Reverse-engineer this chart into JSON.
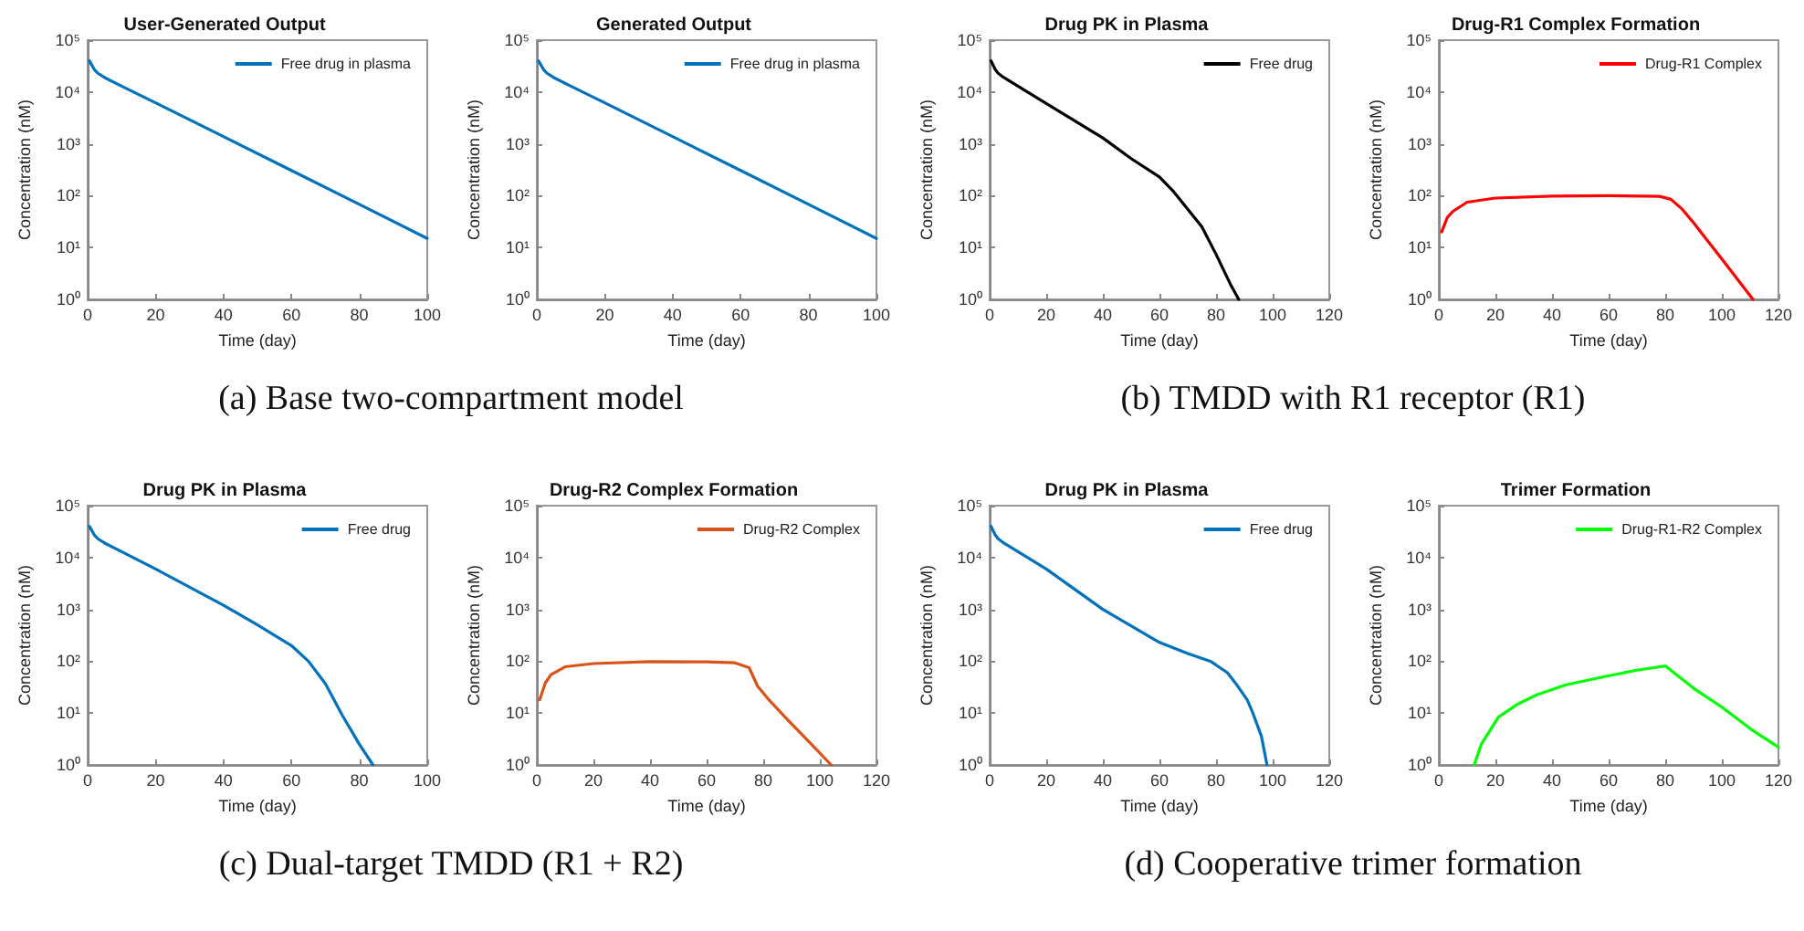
{
  "chart_data": [
    {
      "type": "line",
      "title": "User-Generated Output",
      "xlabel": "Time (day)",
      "ylabel": "Concentration (nM)",
      "xlim": [
        0,
        100
      ],
      "xticks": [
        0,
        20,
        40,
        60,
        80,
        100
      ],
      "ylim": [
        1,
        100000
      ],
      "yticks": [
        {
          "value": 1,
          "label": "10⁰"
        },
        {
          "value": 10,
          "label": "10¹"
        },
        {
          "value": 100,
          "label": "10²"
        },
        {
          "value": 1000,
          "label": "10³"
        },
        {
          "value": 10000,
          "label": "10⁴"
        },
        {
          "value": 100000,
          "label": "10⁵"
        }
      ],
      "log": "y",
      "legend": "top right",
      "annotations": [
        "(a) Base two-compartment model"
      ],
      "series": [
        {
          "name": "Free drug in plasma",
          "color": "#0072bd",
          "x": [
            0.5,
            1,
            2,
            3,
            5,
            10,
            20,
            40,
            60,
            80,
            100
          ],
          "values": [
            40000,
            35000,
            27000,
            23000,
            19000,
            13000,
            6200,
            1380,
            307,
            68,
            15
          ]
        }
      ]
    },
    {
      "type": "line",
      "title": "Generated Output",
      "xlabel": "Time (day)",
      "ylabel": "Concentration (nM)",
      "xlim": [
        0,
        100
      ],
      "xticks": [
        0,
        20,
        40,
        60,
        80,
        100
      ],
      "ylim": [
        1,
        100000
      ],
      "yticks": [
        {
          "value": 1,
          "label": "10⁰"
        },
        {
          "value": 10,
          "label": "10¹"
        },
        {
          "value": 100,
          "label": "10²"
        },
        {
          "value": 1000,
          "label": "10³"
        },
        {
          "value": 10000,
          "label": "10⁴"
        },
        {
          "value": 100000,
          "label": "10⁵"
        }
      ],
      "log": "y",
      "legend": "top right",
      "series": [
        {
          "name": "Free drug in plasma",
          "color": "#0072bd",
          "x": [
            0.5,
            1,
            2,
            3,
            5,
            10,
            20,
            40,
            60,
            80,
            100
          ],
          "values": [
            40000,
            35000,
            27000,
            23000,
            19000,
            13000,
            6200,
            1380,
            307,
            68,
            15
          ]
        }
      ]
    },
    {
      "type": "line",
      "title": "Drug PK in Plasma",
      "xlabel": "Time (day)",
      "ylabel": "Concentration (nM)",
      "xlim": [
        0,
        120
      ],
      "xticks": [
        0,
        20,
        40,
        60,
        80,
        100,
        120
      ],
      "ylim": [
        1,
        100000
      ],
      "yticks": [
        {
          "value": 1,
          "label": "10⁰"
        },
        {
          "value": 10,
          "label": "10¹"
        },
        {
          "value": 100,
          "label": "10²"
        },
        {
          "value": 1000,
          "label": "10³"
        },
        {
          "value": 10000,
          "label": "10⁴"
        },
        {
          "value": 100000,
          "label": "10⁵"
        }
      ],
      "log": "y",
      "legend": "top right",
      "annotations": [
        "(b) TMDD with R1 receptor (R1)"
      ],
      "series": [
        {
          "name": "Free drug",
          "color": "#000000",
          "x": [
            0.5,
            1,
            2,
            3,
            5,
            10,
            20,
            40,
            50,
            60,
            65,
            70,
            75,
            80,
            85,
            88
          ],
          "values": [
            40000,
            35000,
            27000,
            23000,
            19000,
            13000,
            6000,
            1300,
            520,
            230,
            120,
            55,
            25,
            7.4,
            2,
            1
          ]
        }
      ]
    },
    {
      "type": "line",
      "title": "Drug-R1 Complex Formation",
      "xlabel": "Time (day)",
      "ylabel": "Concentration (nM)",
      "xlim": [
        0,
        120
      ],
      "xticks": [
        0,
        20,
        40,
        60,
        80,
        100,
        120
      ],
      "ylim": [
        1,
        100000
      ],
      "yticks": [
        {
          "value": 1,
          "label": "10⁰"
        },
        {
          "value": 10,
          "label": "10¹"
        },
        {
          "value": 100,
          "label": "10²"
        },
        {
          "value": 1000,
          "label": "10³"
        },
        {
          "value": 10000,
          "label": "10⁴"
        },
        {
          "value": 100000,
          "label": "10⁵"
        }
      ],
      "log": "y",
      "legend": "top right",
      "series": [
        {
          "name": "Drug-R1 Complex",
          "color": "#ff0000",
          "x": [
            1,
            3,
            5,
            10,
            20,
            40,
            60,
            78,
            82,
            86,
            90,
            100,
            111
          ],
          "values": [
            20,
            38,
            50,
            75,
            90,
            98,
            100,
            97,
            85,
            55,
            30,
            6,
            1
          ]
        }
      ]
    },
    {
      "type": "line",
      "title": "Drug PK in Plasma",
      "xlabel": "Time (day)",
      "ylabel": "Concentration (nM)",
      "xlim": [
        0,
        100
      ],
      "xticks": [
        0,
        20,
        40,
        60,
        80,
        100
      ],
      "ylim": [
        1,
        100000
      ],
      "yticks": [
        {
          "value": 1,
          "label": "10⁰"
        },
        {
          "value": 10,
          "label": "10¹"
        },
        {
          "value": 100,
          "label": "10²"
        },
        {
          "value": 1000,
          "label": "10³"
        },
        {
          "value": 10000,
          "label": "10⁴"
        },
        {
          "value": 100000,
          "label": "10⁵"
        }
      ],
      "log": "y",
      "legend": "top right",
      "annotations": [
        "(c) Dual-target TMDD (R1 + R2)"
      ],
      "series": [
        {
          "name": "Free drug",
          "color": "#0072bd",
          "x": [
            0.5,
            1,
            2,
            3,
            5,
            10,
            20,
            40,
            50,
            60,
            65,
            70,
            75,
            80,
            84
          ],
          "values": [
            40000,
            35000,
            27000,
            23000,
            19000,
            13000,
            6000,
            1200,
            500,
            200,
            100,
            37,
            9,
            2.5,
            1
          ]
        }
      ]
    },
    {
      "type": "line",
      "title": "Drug-R2 Complex Formation",
      "xlabel": "Time (day)",
      "ylabel": "Concentration (nM)",
      "xlim": [
        0,
        120
      ],
      "xticks": [
        0,
        20,
        40,
        60,
        80,
        100,
        120
      ],
      "ylim": [
        1,
        100000
      ],
      "yticks": [
        {
          "value": 1,
          "label": "10⁰"
        },
        {
          "value": 10,
          "label": "10¹"
        },
        {
          "value": 100,
          "label": "10²"
        },
        {
          "value": 1000,
          "label": "10³"
        },
        {
          "value": 10000,
          "label": "10⁴"
        },
        {
          "value": 100000,
          "label": "10⁵"
        }
      ],
      "log": "y",
      "legend": "top right",
      "series": [
        {
          "name": "Drug-R2 Complex",
          "color": "#d95319",
          "x": [
            1,
            3,
            5,
            10,
            20,
            40,
            60,
            70,
            75,
            78,
            82,
            88,
            97,
            104
          ],
          "values": [
            18,
            38,
            55,
            78,
            90,
            98,
            97,
            93,
            75,
            33,
            18,
            8,
            2.5,
            1
          ]
        }
      ]
    },
    {
      "type": "line",
      "title": "Drug PK in Plasma",
      "xlabel": "Time (day)",
      "ylabel": "Concentration (nM)",
      "xlim": [
        0,
        120
      ],
      "xticks": [
        0,
        20,
        40,
        60,
        80,
        100,
        120
      ],
      "ylim": [
        1,
        100000
      ],
      "yticks": [
        {
          "value": 1,
          "label": "10⁰"
        },
        {
          "value": 10,
          "label": "10¹"
        },
        {
          "value": 100,
          "label": "10²"
        },
        {
          "value": 1000,
          "label": "10³"
        },
        {
          "value": 10000,
          "label": "10⁴"
        },
        {
          "value": 100000,
          "label": "10⁵"
        }
      ],
      "log": "y",
      "legend": "top right",
      "annotations": [
        "(d) Cooperative trimer formation"
      ],
      "series": [
        {
          "name": "Free drug",
          "color": "#0072bd",
          "x": [
            0.5,
            1,
            2,
            3,
            5,
            10,
            20,
            40,
            60,
            70,
            78,
            84,
            87,
            91,
            93,
            96,
            98
          ],
          "values": [
            40000,
            35000,
            27000,
            23000,
            19000,
            13000,
            6000,
            1000,
            230,
            140,
            100,
            60,
            37,
            18,
            10,
            3.6,
            1
          ]
        }
      ]
    },
    {
      "type": "line",
      "title": "Trimer Formation",
      "xlabel": "Time (day)",
      "ylabel": "Concentration (nM)",
      "xlim": [
        0,
        120
      ],
      "xticks": [
        0,
        20,
        40,
        60,
        80,
        100,
        120
      ],
      "ylim": [
        1,
        100000
      ],
      "yticks": [
        {
          "value": 1,
          "label": "10⁰"
        },
        {
          "value": 10,
          "label": "10¹"
        },
        {
          "value": 100,
          "label": "10²"
        },
        {
          "value": 1000,
          "label": "10³"
        },
        {
          "value": 10000,
          "label": "10⁴"
        },
        {
          "value": 100000,
          "label": "10⁵"
        }
      ],
      "log": "y",
      "legend": "top right",
      "series": [
        {
          "name": "Drug-R1-R2 Complex",
          "color": "#00ff00",
          "x": [
            12.5,
            15,
            21,
            28,
            35,
            45,
            59,
            70,
            80,
            90,
            100,
            110,
            120
          ],
          "values": [
            1,
            2.5,
            8.3,
            15,
            23,
            35,
            51,
            67,
            81,
            30,
            13,
            5,
            2.2
          ]
        }
      ]
    }
  ]
}
